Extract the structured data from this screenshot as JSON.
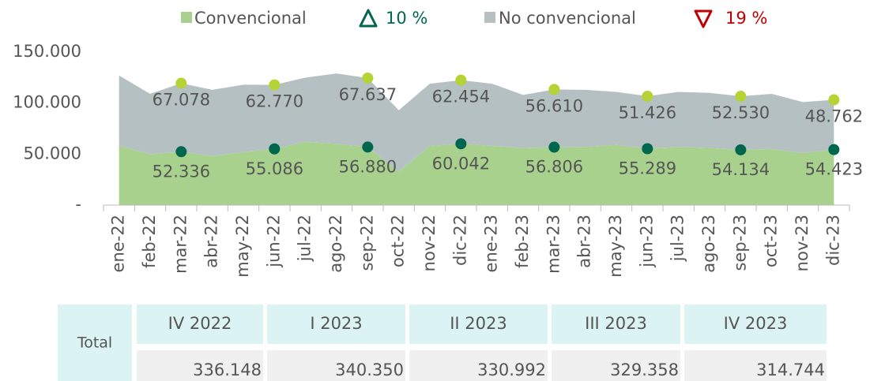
{
  "chart_data": {
    "type": "area",
    "categories": [
      "ene-22",
      "feb-22",
      "mar-22",
      "abr-22",
      "may-22",
      "jun-22",
      "jul-22",
      "ago-22",
      "sep-22",
      "oct-22",
      "nov-22",
      "dic-22",
      "ene-23",
      "feb-23",
      "mar-23",
      "abr-23",
      "may-23",
      "jun-23",
      "jul-23",
      "ago-23",
      "sep-23",
      "oct-23",
      "nov-23",
      "dic-23"
    ],
    "series": [
      {
        "name": "Convencional",
        "color": "#a9d18e",
        "marker_color": "#00674f",
        "values": [
          58000,
          50000,
          52336,
          48000,
          52000,
          55086,
          62000,
          60000,
          56880,
          33000,
          58000,
          60042,
          58000,
          56000,
          56806,
          57000,
          59000,
          55289,
          57000,
          56000,
          54134,
          55000,
          51000,
          54423
        ],
        "value_labels": [
          null,
          null,
          "52.336",
          null,
          null,
          "55.086",
          null,
          null,
          "56.880",
          null,
          null,
          "60.042",
          null,
          null,
          "56.806",
          null,
          null,
          "55.289",
          null,
          null,
          "54.134",
          null,
          null,
          "54.423"
        ]
      },
      {
        "name": "No convencional",
        "color": "#b4c0c2",
        "marker_color": "#b5d334",
        "values": [
          69000,
          59000,
          67078,
          65000,
          66000,
          62770,
          63000,
          69000,
          67637,
          60000,
          61000,
          62454,
          61000,
          52000,
          56610,
          56000,
          52000,
          51426,
          54000,
          54000,
          52530,
          54000,
          50000,
          48762
        ],
        "value_labels": [
          null,
          null,
          "67.078",
          null,
          null,
          "62.770",
          null,
          null,
          "67.637",
          null,
          null,
          "62.454",
          null,
          null,
          "56.610",
          null,
          null,
          "51.426",
          null,
          null,
          "52.530",
          null,
          null,
          "48.762"
        ]
      }
    ],
    "stacked": true,
    "ylim": [
      0,
      150000
    ],
    "yticks": [
      {
        "value": 0,
        "label": "-"
      },
      {
        "value": 50000,
        "label": "50.000"
      },
      {
        "value": 100000,
        "label": "100.000"
      },
      {
        "value": 150000,
        "label": "150.000"
      }
    ],
    "annotations": [
      {
        "text": "10 %",
        "color": "#00674f"
      },
      {
        "text": "19 %",
        "color": "#c00000"
      }
    ],
    "table": {
      "row_label": "Total",
      "columns": [
        "IV 2022",
        "I 2023",
        "II 2023",
        "III 2023",
        "IV 2023"
      ],
      "values": [
        "336.148",
        "340.350",
        "330.992",
        "329.358",
        "314.744"
      ]
    }
  }
}
